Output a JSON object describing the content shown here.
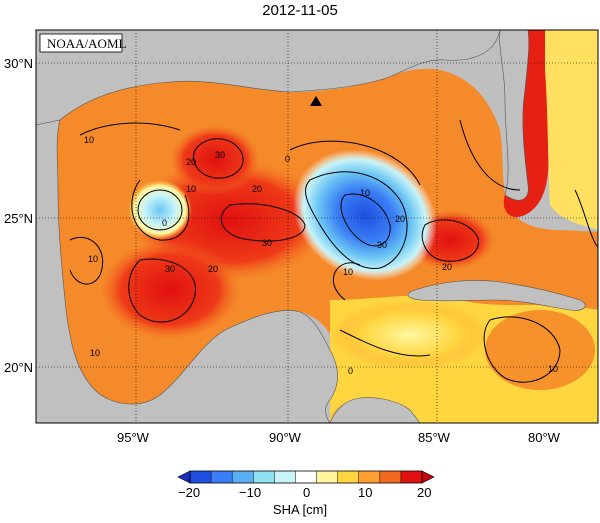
{
  "title": "2012-11-05",
  "credit": "NOAA/AOML",
  "map": {
    "lat_ticks": [
      "30°N",
      "25°N",
      "20°N"
    ],
    "lon_ticks": [
      "95°W",
      "90°W",
      "85°W",
      "80°W"
    ],
    "contour_labels": [
      "10",
      "20",
      "30",
      "0",
      "10",
      "30",
      "20",
      "30",
      "20",
      "10",
      "0",
      "10",
      "20",
      "30",
      "20",
      "10",
      "10",
      "0",
      "10"
    ],
    "marker": "buoy-triangle"
  },
  "colorbar": {
    "ticks": [
      "−20",
      "−10",
      "0",
      "10",
      "20"
    ],
    "label": "SHA [cm]",
    "colors": [
      "#1f4fe0",
      "#3a7ff5",
      "#5bb0f5",
      "#8fe0f0",
      "#c8f4f8",
      "#ffffff",
      "#fff7a0",
      "#ffd640",
      "#ffa030",
      "#f26a20",
      "#e21010"
    ]
  }
}
